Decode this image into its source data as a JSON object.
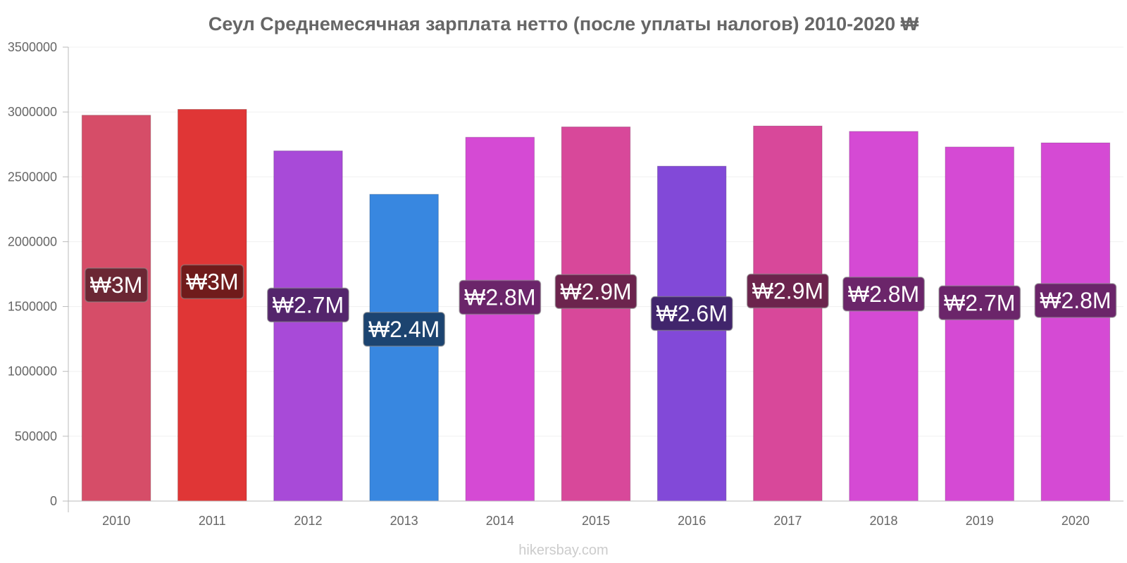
{
  "chart_data": {
    "type": "bar",
    "title": "Сеул Среднемесячная зарплата нетто (после уплаты налогов) 2010-2020 ₩",
    "xlabel": "",
    "ylabel": "",
    "ylim": [
      0,
      3500000
    ],
    "yticks": [
      "0",
      "500000",
      "1000000",
      "1500000",
      "2000000",
      "2500000",
      "3000000",
      "3500000"
    ],
    "categories": [
      "2010",
      "2011",
      "2012",
      "2013",
      "2014",
      "2015",
      "2016",
      "2017",
      "2018",
      "2019",
      "2020"
    ],
    "values": [
      2975000,
      3020000,
      2700000,
      2365000,
      2805000,
      2885000,
      2582000,
      2892000,
      2850000,
      2730000,
      2762000
    ],
    "labels": [
      "₩3M",
      "₩3M",
      "₩2.7M",
      "₩2.4M",
      "₩2.8M",
      "₩2.9M",
      "₩2.6M",
      "₩2.9M",
      "₩2.8M",
      "₩2.7M",
      "₩2.8M"
    ],
    "bar_colors": [
      "#d64d68",
      "#e03636",
      "#a84ad8",
      "#3887e0",
      "#d54ad4",
      "#d8489a",
      "#8249d8",
      "#d8489a",
      "#d54ad4",
      "#d54ad4",
      "#d54ad4"
    ],
    "label_bg_colors": [
      "#6b2734",
      "#701b1b",
      "#54256c",
      "#1c4470",
      "#6b256a",
      "#6c244d",
      "#41256c",
      "#6c244d",
      "#6b256a",
      "#6b256a",
      "#6b256a"
    ],
    "grid": true,
    "legend": "none"
  },
  "credit": "hikersbay.com"
}
